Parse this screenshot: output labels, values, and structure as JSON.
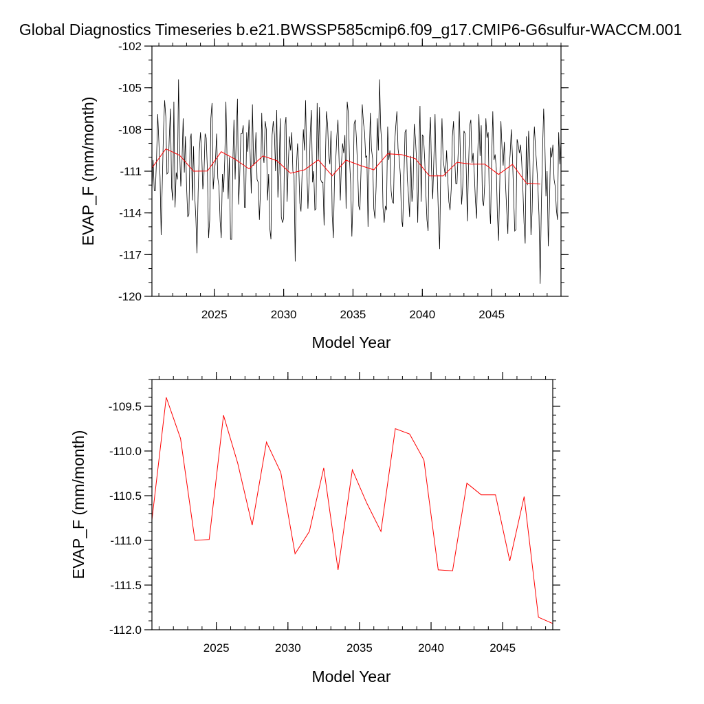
{
  "title": "Global Diagnostics Timeseries b.e21.BWSSP585cmip6.f09_g17.CMIP6-G6sulfur-WACCM.001",
  "chart_data": [
    {
      "type": "line",
      "xlabel": "Model Year",
      "ylabel": "EVAP_F (mm/month)",
      "xlim": [
        2020.5,
        2050
      ],
      "ylim": [
        -120,
        -102
      ],
      "x_ticks": [
        2025,
        2030,
        2035,
        2040,
        2045
      ],
      "y_ticks": [
        -120,
        -117,
        -114,
        -111,
        -108,
        -105,
        -102
      ],
      "x_tick_labels": [
        "2025",
        "2030",
        "2035",
        "2040",
        "2045"
      ],
      "y_tick_labels": [
        "-120",
        "-117",
        "-114",
        "-111",
        "-108",
        "-105",
        "-102"
      ],
      "grid": false,
      "series": [
        {
          "color": "#000000",
          "x_start": 2020.5,
          "x_step": 0.08333,
          "values": [
            -112.4,
            -110.2,
            -112.4,
            -112.4,
            -110.1,
            -106.9,
            -108.9,
            -111.4,
            -115.6,
            -111.8,
            -108.1,
            -105.9,
            -107.1,
            -111.2,
            -111.1,
            -108.6,
            -106.5,
            -112.2,
            -113.1,
            -106.0,
            -113.6,
            -111.1,
            -111.6,
            -104.4,
            -109.6,
            -112.1,
            -110.3,
            -107.2,
            -111.1,
            -108.5,
            -112.1,
            -114.3,
            -114.1,
            -108.8,
            -108.3,
            -113.1,
            -109.2,
            -112.7,
            -114.4,
            -116.9,
            -112.5,
            -109.6,
            -108.2,
            -109.6,
            -112.3,
            -111.4,
            -108.3,
            -108.6,
            -111.0,
            -115.8,
            -114.5,
            -107.2,
            -106.1,
            -112.3,
            -111.1,
            -110.2,
            -108.3,
            -111.5,
            -112.1,
            -114.6,
            -115.8,
            -111.2,
            -112.5,
            -110.2,
            -106.0,
            -109.9,
            -113.0,
            -110.0,
            -115.9,
            -115.9,
            -110.3,
            -107.3,
            -111.6,
            -108.5,
            -105.8,
            -113.4,
            -111.3,
            -108.3,
            -108.3,
            -107.7,
            -113.6,
            -113.6,
            -108.2,
            -109.6,
            -107.3,
            -109.8,
            -112.6,
            -106.2,
            -110.6,
            -110.3,
            -108.2,
            -111.6,
            -111.8,
            -114.5,
            -112.2,
            -106.8,
            -109.7,
            -110.4,
            -107.4,
            -108.0,
            -113.1,
            -111.2,
            -115.1,
            -115.9,
            -108.4,
            -107.4,
            -108.4,
            -111.0,
            -106.6,
            -112.9,
            -111.1,
            -107.2,
            -114.3,
            -114.7,
            -114.4,
            -107.8,
            -107.1,
            -113.2,
            -110.5,
            -108.5,
            -109.5,
            -108.2,
            -111.0,
            -111.3,
            -117.5,
            -110.8,
            -109.0,
            -110.6,
            -113.3,
            -113.9,
            -111.0,
            -108.0,
            -109.5,
            -105.9,
            -110.6,
            -113.7,
            -111.6,
            -108.2,
            -106.6,
            -111.8,
            -111.0,
            -113.8,
            -113.7,
            -106.1,
            -110.2,
            -106.4,
            -111.6,
            -111.8,
            -111.8,
            -114.9,
            -110.7,
            -106.7,
            -107.6,
            -109.9,
            -110.5,
            -108.1,
            -114.2,
            -115.8,
            -111.4,
            -110.4,
            -108.5,
            -107.3,
            -110.4,
            -113.1,
            -110.5,
            -109.0,
            -109.7,
            -108.4,
            -113.7,
            -106.0,
            -106.8,
            -110.2,
            -111.9,
            -115.7,
            -113.1,
            -107.6,
            -107.3,
            -108.7,
            -110.9,
            -113.5,
            -113.8,
            -110.8,
            -106.2,
            -107.5,
            -108.2,
            -110.0,
            -109.9,
            -115.0,
            -110.2,
            -106.8,
            -109.4,
            -110.1,
            -113.7,
            -114.4,
            -112.1,
            -107.2,
            -109.5,
            -104.4,
            -107.9,
            -109.2,
            -113.6,
            -114.7,
            -113.5,
            -113.8,
            -107.8,
            -110.2,
            -109.5,
            -112.4,
            -113.2,
            -113.3,
            -109.0,
            -107.8,
            -106.7,
            -109.4,
            -110.1,
            -111.3,
            -114.4,
            -115.0,
            -111.7,
            -108.2,
            -108.0,
            -111.5,
            -112.7,
            -114.3,
            -109.9,
            -113.2,
            -112.3,
            -107.6,
            -108.6,
            -110.2,
            -114.7,
            -110.2,
            -106.3,
            -113.2,
            -108.4,
            -108.5,
            -110.1,
            -112.4,
            -114.5,
            -115.3,
            -108.8,
            -107.1,
            -110.9,
            -113.0,
            -110.1,
            -106.9,
            -111.2,
            -111.3,
            -114.4,
            -116.6,
            -110.3,
            -107.2,
            -110.1,
            -110.8,
            -111.4,
            -109.5,
            -111.5,
            -113.2,
            -113.8,
            -112.3,
            -108.5,
            -107.4,
            -110.0,
            -111.9,
            -111.9,
            -109.7,
            -106.7,
            -110.2,
            -113.4,
            -112.1,
            -108.1,
            -108.3,
            -110.9,
            -114.6,
            -110.7,
            -107.7,
            -107.3,
            -110.4,
            -109.7,
            -111.2,
            -113.2,
            -114.4,
            -109.6,
            -106.9,
            -109.9,
            -107.7,
            -113.1,
            -113.5,
            -112.0,
            -107.2,
            -108.6,
            -108.2,
            -113.3,
            -114.8,
            -110.3,
            -106.7,
            -110.2,
            -109.8,
            -110.8,
            -114.2,
            -116.0,
            -112.0,
            -107.4,
            -109.4,
            -110.6,
            -108.9,
            -111.9,
            -113.8,
            -115.5,
            -111.0,
            -109.8,
            -108.0,
            -109.9,
            -112.8,
            -115.3,
            -115.2,
            -108.7,
            -109.1,
            -109.7,
            -109.1,
            -110.3,
            -112.2,
            -114.7,
            -116.2,
            -108.5,
            -112.0,
            -108.1,
            -110.0,
            -115.6,
            -113.9,
            -109.7,
            -107.8,
            -109.4,
            -110.6,
            -112.1,
            -114.2,
            -119.1,
            -113.5,
            -109.6,
            -106.5,
            -108.7,
            -112.8,
            -111.0,
            -116.4,
            -113.5,
            -109.3,
            -110.0,
            -109.1,
            -111.6,
            -112.1,
            -113.8,
            -114.5,
            -108.2,
            -110.5,
            -108.8,
            -113.7
          ]
        },
        {
          "color": "#ff0000",
          "x": [
            2020.5,
            2021.5,
            2022.5,
            2023.5,
            2024.5,
            2025.5,
            2026.5,
            2027.5,
            2028.5,
            2029.5,
            2030.5,
            2031.5,
            2032.5,
            2033.5,
            2034.5,
            2035.5,
            2036.5,
            2037.5,
            2038.5,
            2039.5,
            2040.5,
            2041.5,
            2042.5,
            2043.5,
            2044.5,
            2045.5,
            2046.5,
            2047.5,
            2048.5
          ],
          "values": [
            -110.77,
            -109.4,
            -109.86,
            -111.0,
            -110.99,
            -109.6,
            -110.14,
            -110.83,
            -109.9,
            -110.24,
            -111.15,
            -110.9,
            -110.19,
            -111.33,
            -110.21,
            -110.58,
            -110.9,
            -109.75,
            -109.81,
            -110.1,
            -111.33,
            -111.34,
            -110.36,
            -110.49,
            -110.49,
            -111.23,
            -110.51,
            -111.86,
            -111.93
          ]
        }
      ]
    },
    {
      "type": "line",
      "xlabel": "Model Year",
      "ylabel": "EVAP_F (mm/month)",
      "xlim": [
        2020.5,
        2048.5
      ],
      "ylim": [
        -112.0,
        -109.2
      ],
      "x_ticks": [
        2025,
        2030,
        2035,
        2040,
        2045
      ],
      "y_ticks": [
        -112.0,
        -111.5,
        -111.0,
        -110.5,
        -110.0,
        -109.5
      ],
      "x_tick_labels": [
        "2025",
        "2030",
        "2035",
        "2040",
        "2045"
      ],
      "y_tick_labels": [
        "-112.0",
        "-111.5",
        "-111.0",
        "-110.5",
        "-110.0",
        "-109.5"
      ],
      "grid": false,
      "series": [
        {
          "color": "#ff0000",
          "x": [
            2020.5,
            2021.5,
            2022.5,
            2023.5,
            2024.5,
            2025.5,
            2026.5,
            2027.5,
            2028.5,
            2029.5,
            2030.5,
            2031.5,
            2032.5,
            2033.5,
            2034.5,
            2035.5,
            2036.5,
            2037.5,
            2038.5,
            2039.5,
            2040.5,
            2041.5,
            2042.5,
            2043.5,
            2044.5,
            2045.5,
            2046.5,
            2047.5,
            2048.5
          ],
          "values": [
            -110.77,
            -109.4,
            -109.86,
            -111.0,
            -110.99,
            -109.6,
            -110.14,
            -110.83,
            -109.9,
            -110.24,
            -111.15,
            -110.9,
            -110.19,
            -111.33,
            -110.21,
            -110.58,
            -110.9,
            -109.75,
            -109.81,
            -110.1,
            -111.33,
            -111.34,
            -110.36,
            -110.49,
            -110.49,
            -111.23,
            -110.51,
            -111.86,
            -111.93
          ]
        }
      ]
    }
  ]
}
